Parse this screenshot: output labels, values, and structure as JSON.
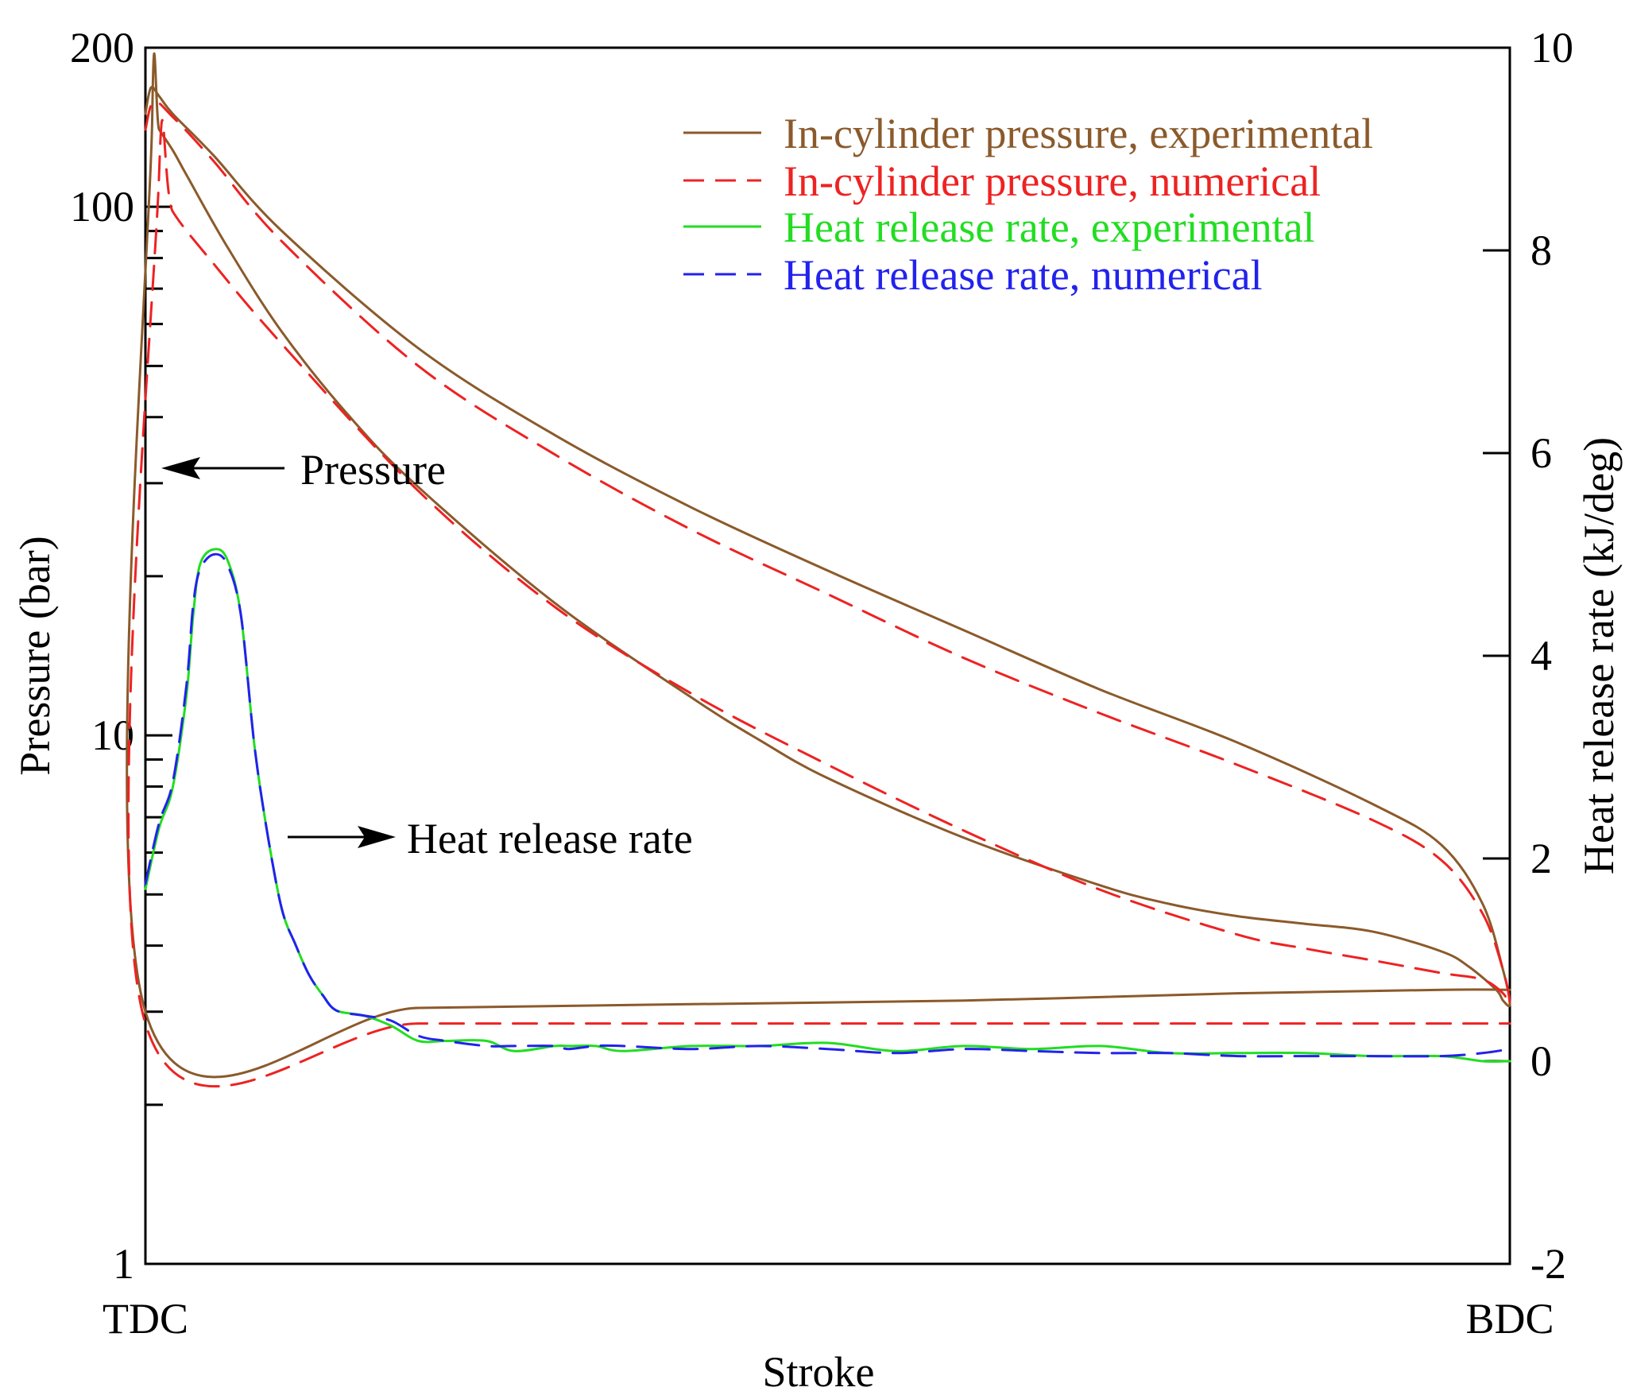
{
  "chart_data": {
    "type": "line",
    "title": "",
    "xlabel": "Stroke",
    "x_tick_labels": [
      "TDC",
      "BDC"
    ],
    "xlim": [
      0,
      1
    ],
    "y_left": {
      "label": "Pressure (bar)",
      "scale": "log",
      "ylim": [
        1,
        200
      ],
      "tick_labels": [
        "1",
        "10",
        "100",
        "200"
      ],
      "tick_values": [
        1,
        10,
        100,
        200
      ]
    },
    "y_right": {
      "label": "Heat release rate (kJ/deg)",
      "scale": "linear",
      "ylim": [
        -2,
        10
      ],
      "tick_labels": [
        "-2",
        "0",
        "2",
        "4",
        "6",
        "8",
        "10"
      ],
      "tick_values": [
        -2,
        0,
        2,
        4,
        6,
        8,
        10
      ]
    },
    "legend": {
      "position": "top-right",
      "entries": [
        {
          "label": "In-cylinder pressure, experimental",
          "color": "#8B5A2B",
          "style": "solid"
        },
        {
          "label": "In-cylinder pressure, numerical",
          "color": "#EE2222",
          "style": "dashed"
        },
        {
          "label": "Heat release rate, experimental",
          "color": "#22DD22",
          "style": "solid"
        },
        {
          "label": "Heat release rate, numerical",
          "color": "#2222EE",
          "style": "dashed"
        }
      ]
    },
    "annotations": [
      {
        "text": "Pressure",
        "arrow": "left"
      },
      {
        "text": "Heat release rate",
        "arrow": "right"
      }
    ],
    "series": [
      {
        "name": "In-cylinder pressure, experimental",
        "axis": "left",
        "color": "#8B5A2B",
        "style": "solid",
        "x": [
          0.0,
          0.004,
          0.01,
          0.02,
          0.05,
          0.1,
          0.2,
          0.3,
          0.4,
          0.5,
          0.6,
          0.7,
          0.8,
          0.9,
          0.95,
          0.98,
          0.995,
          1.0,
          0.995,
          0.99,
          0.97,
          0.95,
          0.9,
          0.85,
          0.8,
          0.75,
          0.7,
          0.6,
          0.5,
          0.45,
          0.4,
          0.3,
          0.2,
          0.15,
          0.1,
          0.06,
          0.03,
          0.02,
          0.01,
          0.005,
          0.0,
          0.2,
          0.4,
          0.6,
          0.8,
          0.95,
          1.0
        ],
        "y": [
          150,
          168,
          162,
          150,
          125,
          90,
          54,
          37,
          27,
          20.5,
          15.8,
          12.2,
          9.7,
          7.4,
          6.2,
          4.8,
          3.6,
          3.1,
          3.15,
          3.3,
          3.65,
          3.9,
          4.25,
          4.4,
          4.55,
          4.8,
          5.2,
          6.4,
          8.3,
          9.8,
          11.8,
          17.8,
          29.5,
          40,
          58,
          84,
          115,
          128,
          140,
          148,
          3.0,
          3.05,
          3.1,
          3.15,
          3.25,
          3.3,
          3.3
        ]
      },
      {
        "name": "In-cylinder pressure, numerical",
        "axis": "left",
        "color": "#EE2222",
        "style": "dashed",
        "x": [
          0.0,
          0.006,
          0.02,
          0.05,
          0.1,
          0.2,
          0.3,
          0.4,
          0.5,
          0.6,
          0.7,
          0.8,
          0.9,
          0.95,
          0.98,
          0.995,
          1.0,
          0.995,
          0.98,
          0.95,
          0.9,
          0.85,
          0.8,
          0.7,
          0.6,
          0.5,
          0.4,
          0.3,
          0.2,
          0.1,
          0.05,
          0.02,
          0.01,
          0.0,
          0.2,
          0.4,
          0.6,
          0.8,
          1.0
        ],
        "y": [
          140,
          158,
          148,
          122,
          86,
          50,
          34,
          24.5,
          18.5,
          14,
          11,
          8.8,
          6.9,
          5.8,
          4.6,
          3.6,
          3.1,
          3.25,
          3.45,
          3.55,
          3.75,
          3.95,
          4.2,
          5.1,
          6.6,
          8.8,
          12,
          17.5,
          29,
          55,
          78,
          98,
          115,
          2.85,
          2.85,
          2.85,
          2.85,
          2.85,
          2.85
        ]
      },
      {
        "name": "Heat release rate, experimental",
        "axis": "right",
        "color": "#22DD22",
        "style": "solid",
        "x": [
          0.0,
          0.01,
          0.02,
          0.03,
          0.035,
          0.04,
          0.05,
          0.06,
          0.07,
          0.08,
          0.09,
          0.1,
          0.11,
          0.12,
          0.13,
          0.14,
          0.16,
          0.18,
          0.2,
          0.22,
          0.25,
          0.27,
          0.3,
          0.31,
          0.33,
          0.35,
          0.4,
          0.45,
          0.5,
          0.55,
          0.6,
          0.65,
          0.7,
          0.75,
          0.8,
          0.85,
          0.9,
          0.95,
          0.98,
          1.0
        ],
        "y": [
          1.7,
          2.3,
          2.7,
          3.6,
          4.4,
          4.9,
          5.05,
          4.95,
          4.4,
          3.1,
          2.2,
          1.5,
          1.15,
          0.85,
          0.65,
          0.5,
          0.45,
          0.35,
          0.2,
          0.2,
          0.2,
          0.1,
          0.15,
          0.15,
          0.15,
          0.1,
          0.15,
          0.15,
          0.18,
          0.1,
          0.15,
          0.12,
          0.15,
          0.08,
          0.08,
          0.08,
          0.05,
          0.05,
          0.0,
          0.0
        ]
      },
      {
        "name": "Heat release rate, numerical",
        "axis": "right",
        "color": "#2222EE",
        "style": "dashed",
        "x": [
          0.0,
          0.01,
          0.02,
          0.03,
          0.035,
          0.04,
          0.05,
          0.06,
          0.07,
          0.08,
          0.09,
          0.1,
          0.11,
          0.12,
          0.13,
          0.14,
          0.16,
          0.18,
          0.2,
          0.22,
          0.25,
          0.27,
          0.3,
          0.31,
          0.33,
          0.35,
          0.4,
          0.45,
          0.5,
          0.55,
          0.6,
          0.65,
          0.7,
          0.75,
          0.8,
          0.85,
          0.9,
          0.95,
          0.98,
          1.0
        ],
        "y": [
          1.75,
          2.35,
          2.75,
          3.7,
          4.5,
          4.85,
          5.0,
          4.9,
          4.4,
          3.1,
          2.2,
          1.5,
          1.15,
          0.85,
          0.65,
          0.5,
          0.45,
          0.4,
          0.25,
          0.2,
          0.15,
          0.15,
          0.15,
          0.12,
          0.15,
          0.15,
          0.12,
          0.15,
          0.12,
          0.08,
          0.12,
          0.1,
          0.08,
          0.08,
          0.05,
          0.05,
          0.05,
          0.05,
          0.08,
          0.12
        ]
      }
    ]
  }
}
